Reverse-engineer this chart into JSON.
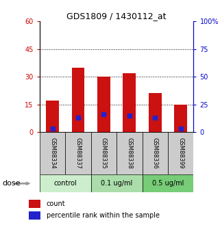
{
  "title": "GDS1809 / 1430112_at",
  "categories": [
    "GSM88334",
    "GSM88337",
    "GSM88335",
    "GSM88338",
    "GSM88336",
    "GSM88399"
  ],
  "red_values": [
    17,
    35,
    30,
    32,
    21,
    15
  ],
  "blue_values": [
    3,
    13,
    16,
    15,
    13,
    3
  ],
  "groups": [
    {
      "label": "control",
      "color": "#cceecc",
      "cols": [
        0,
        1
      ]
    },
    {
      "label": "0.1 ug/ml",
      "color": "#aaddaa",
      "cols": [
        2,
        3
      ]
    },
    {
      "label": "0.5 ug/ml",
      "color": "#77cc77",
      "cols": [
        4,
        5
      ]
    }
  ],
  "ylim_left": [
    0,
    60
  ],
  "ylim_right": [
    0,
    100
  ],
  "yticks_left": [
    0,
    15,
    30,
    45,
    60
  ],
  "yticks_right": [
    0,
    25,
    50,
    75,
    100
  ],
  "ytick_labels_left": [
    "0",
    "15",
    "30",
    "45",
    "60"
  ],
  "ytick_labels_right": [
    "0",
    "25",
    "50",
    "75",
    "100%"
  ],
  "left_color": "#cc0000",
  "right_color": "#0000cc",
  "red_color": "#cc1111",
  "blue_color": "#2222cc",
  "grid_color": "#000000",
  "bg_color": "#ffffff",
  "label_bg_color": "#cccccc",
  "legend_red": "count",
  "legend_blue": "percentile rank within the sample"
}
